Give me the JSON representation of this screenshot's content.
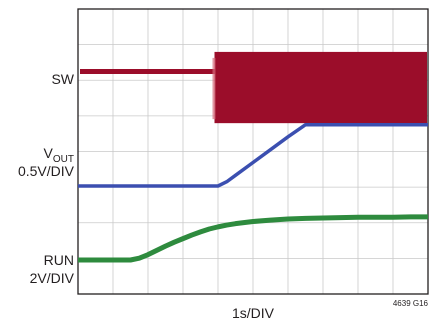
{
  "chart_data": {
    "type": "line",
    "title": "",
    "xlabel": "1s/DIV",
    "figure_id": "4639 G16",
    "divisions": {
      "x": 10,
      "y": 8
    },
    "x": [
      0,
      1.5,
      1.75,
      2,
      2.25,
      2.5,
      2.75,
      3,
      3.25,
      3.5,
      3.75,
      4,
      4.25,
      4.5,
      5,
      5.5,
      6,
      6.5,
      7,
      7.5,
      8,
      8.5,
      9,
      9.5,
      10
    ],
    "series": [
      {
        "name": "SW",
        "color": "#9b0d2a",
        "values": [
          0,
          0,
          0,
          0,
          0,
          0,
          0,
          0,
          0,
          0,
          0,
          0,
          0,
          0,
          0,
          0,
          0,
          0,
          0,
          0,
          0,
          0,
          0,
          0,
          0
        ],
        "switching_start_div": 3.9,
        "switching_band_div": [
          0.55,
          1.45
        ]
      },
      {
        "name": "VOUT",
        "scale_label": "0.5V/DIV",
        "color": "#3b4fb0",
        "values": [
          0,
          0,
          0,
          0,
          0,
          0,
          0,
          0,
          0,
          0,
          0,
          0,
          0.12,
          0.3,
          0.66,
          1.02,
          1.38,
          1.72,
          1.72,
          1.72,
          1.72,
          1.72,
          1.72,
          1.72,
          1.72
        ]
      },
      {
        "name": "RUN",
        "scale_label": "2V/DIV",
        "color": "#2e8b3e",
        "values": [
          0,
          0,
          0.05,
          0.15,
          0.27,
          0.39,
          0.5,
          0.6,
          0.7,
          0.79,
          0.87,
          0.93,
          0.98,
          1.02,
          1.08,
          1.12,
          1.15,
          1.17,
          1.18,
          1.19,
          1.2,
          1.2,
          1.2,
          1.21,
          1.21
        ]
      }
    ]
  },
  "labels": {
    "sw": "SW",
    "vout_main": "V",
    "vout_sub": "OUT",
    "vout_scale": "0.5V/DIV",
    "run": "RUN",
    "run_scale": "2V/DIV",
    "xlabel": "1s/DIV",
    "figure_id": "4639 G16"
  }
}
